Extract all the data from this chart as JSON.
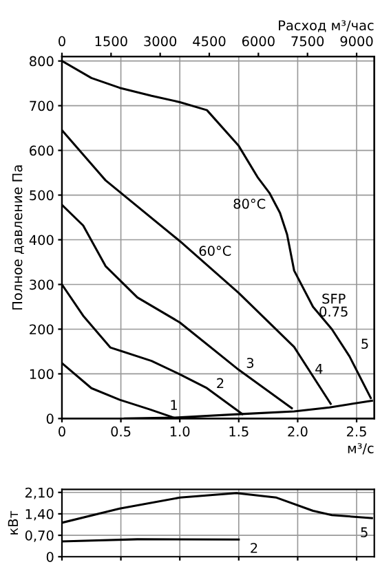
{
  "chart_data": [
    {
      "type": "line",
      "ylabel": "Полное давление Па",
      "xlabel": "м³/с",
      "x2label": "Расход м³/час",
      "grid": true,
      "xlim": [
        0,
        2.65
      ],
      "xticks": [
        {
          "value": 0,
          "label": "0"
        },
        {
          "value": 0.5,
          "label": "0.5"
        },
        {
          "value": 1.0,
          "label": "1.0"
        },
        {
          "value": 1.5,
          "label": "1.5"
        },
        {
          "value": 2.0,
          "label": "2.0"
        },
        {
          "value": 2.5,
          "label": "2.5"
        }
      ],
      "x2lim": [
        0,
        9540
      ],
      "x2ticks": [
        0,
        1500,
        3000,
        4500,
        6000,
        7500,
        9000
      ],
      "ylim": [
        0,
        810
      ],
      "yticks": [
        0,
        100,
        200,
        300,
        400,
        500,
        600,
        700,
        800
      ],
      "series": [
        {
          "name": "5",
          "color": "#000000",
          "x": [
            0,
            0.25,
            0.49,
            0.76,
            1.0,
            1.23,
            1.5,
            1.66,
            1.76,
            1.85,
            1.91,
            1.97,
            2.13,
            2.29,
            2.44,
            2.62
          ],
          "values": [
            800,
            762,
            740,
            722,
            708,
            690,
            610,
            540,
            505,
            460,
            412,
            331,
            250,
            200,
            139,
            46
          ]
        },
        {
          "name": "4",
          "color": "#000000",
          "x": [
            0,
            0.37,
            1.0,
            1.5,
            1.97,
            2.28
          ],
          "values": [
            645,
            533,
            397,
            281,
            160,
            33
          ]
        },
        {
          "name": "3",
          "color": "#000000",
          "x": [
            0,
            0.18,
            0.37,
            0.64,
            1.0,
            1.5,
            1.95
          ],
          "values": [
            478,
            432,
            341,
            271,
            215,
            109,
            23
          ]
        },
        {
          "name": "2",
          "color": "#000000",
          "x": [
            0,
            0.18,
            0.41,
            0.76,
            1.0,
            1.23,
            1.53
          ],
          "values": [
            300,
            230,
            159,
            129,
            99,
            68,
            10
          ]
        },
        {
          "name": "1",
          "color": "#000000",
          "x": [
            0,
            0.25,
            0.49,
            0.75,
            0.95
          ],
          "values": [
            124,
            68,
            42,
            20,
            2
          ]
        },
        {
          "color": "#000000",
          "x": [
            0.53,
            0.95,
            1.52,
            1.97,
            2.27,
            2.63
          ],
          "values": [
            0,
            2,
            10,
            16,
            25,
            40
          ]
        }
      ],
      "annotations": [
        "80°C",
        "60°C",
        "SFP\n0.75"
      ]
    },
    {
      "type": "line",
      "ylabel": "кВт",
      "grid": true,
      "tick_labels": "y",
      "xlim": [
        0,
        2.65
      ],
      "xticks": [
        {
          "value": 0,
          "label": null
        },
        {
          "value": 0.5,
          "label": null
        },
        {
          "value": 1.0,
          "label": null
        },
        {
          "value": 1.5,
          "label": null
        },
        {
          "value": 2.0,
          "label": null
        },
        {
          "value": 2.5,
          "label": null
        }
      ],
      "ylim": [
        0,
        2.2
      ],
      "yticks": [
        {
          "value": 0,
          "label": "0"
        },
        {
          "value": 0.7,
          "label": "0,70"
        },
        {
          "value": 1.4,
          "label": "1,40"
        },
        {
          "value": 2.1,
          "label": "2,10"
        }
      ],
      "series": [
        {
          "name": "5",
          "color": "#000000",
          "x": [
            0,
            0.49,
            1.0,
            1.48,
            1.82,
            2.13,
            2.29,
            2.63
          ],
          "values": [
            1.11,
            1.57,
            1.93,
            2.08,
            1.93,
            1.5,
            1.36,
            1.26
          ]
        },
        {
          "name": "2",
          "color": "#000000",
          "x": [
            0,
            0.64,
            1.5
          ],
          "values": [
            0.5,
            0.57,
            0.56
          ]
        }
      ]
    }
  ]
}
